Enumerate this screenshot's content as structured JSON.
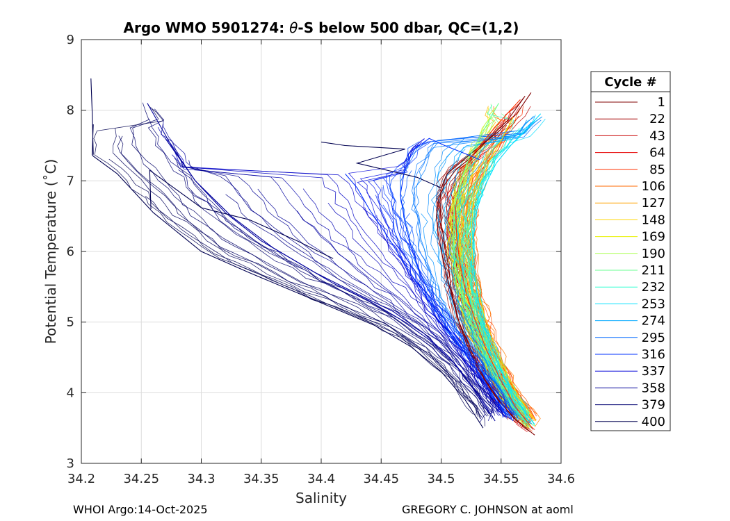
{
  "chart_data": {
    "type": "line",
    "title": "Argo WMO 5901274: θ-S below 500 dbar,  QC=(1,2)",
    "title_prefix": "Argo WMO 5901274: ",
    "title_theta": "θ",
    "title_suffix": "-S below 500 dbar,  QC=(1,2)",
    "xlabel": "Salinity",
    "ylabel": "Potential Temperature (˚C)",
    "xlim": [
      34.2,
      34.6
    ],
    "ylim": [
      3,
      9
    ],
    "xticks": [
      34.2,
      34.25,
      34.3,
      34.35,
      34.4,
      34.45,
      34.5,
      34.55,
      34.6
    ],
    "xtick_labels": [
      "34.2",
      "34.25",
      "34.3",
      "34.35",
      "34.4",
      "34.45",
      "34.5",
      "34.55",
      "34.6"
    ],
    "yticks": [
      3,
      4,
      5,
      6,
      7,
      8,
      9
    ],
    "ytick_labels": [
      "3",
      "4",
      "5",
      "6",
      "7",
      "8",
      "9"
    ],
    "grid": true,
    "legend": {
      "title": "Cycle #",
      "placement": "outside-right",
      "entries": [
        "1",
        "22",
        "43",
        "64",
        "85",
        "106",
        "127",
        "148",
        "169",
        "190",
        "211",
        "232",
        "253",
        "274",
        "295",
        "316",
        "337",
        "358",
        "379",
        "400"
      ],
      "colors": [
        "#800000",
        "#a50000",
        "#c80000",
        "#e60000",
        "#ff3000",
        "#ff6a00",
        "#ffa200",
        "#ffd600",
        "#e8f000",
        "#a8ff4c",
        "#68ff90",
        "#2cffd0",
        "#00e0ff",
        "#00a8ff",
        "#0068ff",
        "#0030ff",
        "#0000d8",
        "#00009c",
        "#000070",
        "#000050"
      ]
    },
    "series": [
      {
        "name": "1",
        "color": "#800000",
        "curves": [
          {
            "s": [
              34.578,
              34.563,
              34.548,
              34.536,
              34.525,
              34.515,
              34.509,
              34.506,
              34.503,
              34.5,
              34.499,
              34.5,
              34.505,
              34.519,
              34.533,
              34.548,
              34.563,
              34.575
            ],
            "t": [
              3.4,
              3.6,
              3.9,
              4.2,
              4.6,
              5.0,
              5.4,
              5.8,
              6.1,
              6.4,
              6.7,
              6.9,
              7.1,
              7.3,
              7.5,
              7.7,
              7.95,
              8.25
            ]
          },
          {
            "s": [
              34.574,
              34.56,
              34.545,
              34.532,
              34.521,
              34.513,
              34.507,
              34.502,
              34.498,
              34.496,
              34.498,
              34.503,
              34.512,
              34.526,
              34.54,
              34.555,
              34.57
            ],
            "t": [
              3.45,
              3.65,
              3.95,
              4.3,
              4.7,
              5.1,
              5.5,
              5.85,
              6.2,
              6.5,
              6.75,
              6.95,
              7.15,
              7.35,
              7.6,
              7.85,
              8.2
            ]
          }
        ]
      },
      {
        "name": "85",
        "color": "#ff3000",
        "curves": [
          {
            "s": [
              34.576,
              34.562,
              34.549,
              34.538,
              34.529,
              34.521,
              34.516,
              34.513,
              34.512,
              34.514,
              34.52,
              34.53,
              34.542,
              34.555,
              34.566
            ],
            "t": [
              3.5,
              3.8,
              4.2,
              4.6,
              5.0,
              5.4,
              5.8,
              6.2,
              6.6,
              6.9,
              7.2,
              7.45,
              7.7,
              7.95,
              8.15
            ]
          }
        ]
      },
      {
        "name": "148",
        "color": "#ffd600",
        "curves": [
          {
            "s": [
              34.579,
              34.566,
              34.554,
              34.544,
              34.536,
              34.53,
              34.526,
              34.525,
              34.527,
              34.533,
              34.541,
              34.551,
              34.56
            ],
            "t": [
              3.6,
              3.9,
              4.3,
              4.7,
              5.1,
              5.5,
              5.9,
              6.3,
              6.7,
              7.0,
              7.3,
              7.6,
              7.9
            ]
          }
        ]
      },
      {
        "name": "211",
        "color": "#68ff90",
        "curves": [
          {
            "s": [
              34.575,
              34.56,
              34.546,
              34.534,
              34.524,
              34.517,
              34.512,
              34.51,
              34.511,
              34.516,
              34.524,
              34.535,
              34.548
            ],
            "t": [
              3.5,
              3.8,
              4.2,
              4.6,
              5.0,
              5.4,
              5.8,
              6.2,
              6.6,
              7.0,
              7.35,
              7.7,
              8.1
            ]
          }
        ]
      },
      {
        "name": "253",
        "color": "#00e0ff",
        "curves": [
          {
            "s": [
              34.578,
              34.565,
              34.553,
              34.543,
              34.535,
              34.53,
              34.527,
              34.527,
              34.53,
              34.537,
              34.546,
              34.558,
              34.572,
              34.583
            ],
            "t": [
              3.55,
              3.85,
              4.2,
              4.6,
              5.0,
              5.4,
              5.8,
              6.2,
              6.6,
              6.95,
              7.25,
              7.5,
              7.75,
              7.95
            ]
          }
        ]
      },
      {
        "name": "316",
        "color": "#0030ff",
        "curves": [
          {
            "s": [
              34.56,
              34.545,
              34.53,
              34.512,
              34.497,
              34.485,
              34.476,
              34.47,
              34.466,
              34.47,
              34.478,
              34.49,
              34.503,
              34.518,
              34.532
            ],
            "t": [
              3.6,
              4.0,
              4.4,
              4.8,
              5.2,
              5.6,
              6.0,
              6.4,
              6.8,
              7.2,
              7.45,
              7.6,
              7.5,
              7.4,
              7.3
            ]
          },
          {
            "s": [
              34.555,
              34.54,
              34.524,
              34.508,
              34.492,
              34.478,
              34.465,
              34.452,
              34.44,
              34.43,
              34.42
            ],
            "t": [
              3.65,
              4.05,
              4.45,
              4.85,
              5.25,
              5.6,
              5.95,
              6.3,
              6.6,
              6.9,
              7.1
            ]
          }
        ]
      },
      {
        "name": "358",
        "color": "#00009c",
        "curves": [
          {
            "s": [
              34.545,
              34.53,
              34.512,
              34.49,
              34.465,
              34.44,
              34.41,
              34.38,
              34.35,
              34.32,
              34.295,
              34.275,
              34.255
            ],
            "t": [
              3.6,
              4.0,
              4.4,
              4.75,
              5.05,
              5.3,
              5.55,
              5.85,
              6.15,
              6.55,
              7.0,
              7.5,
              8.1
            ]
          },
          {
            "s": [
              34.54,
              34.525,
              34.507,
              34.485,
              34.46,
              34.43,
              34.395,
              34.36,
              34.325,
              34.295,
              34.27
            ],
            "t": [
              3.7,
              4.1,
              4.5,
              4.85,
              5.15,
              5.4,
              5.7,
              6.05,
              6.5,
              7.0,
              7.6
            ]
          }
        ]
      },
      {
        "name": "400",
        "color": "#000050",
        "curves": [
          {
            "s": [
              34.535,
              34.52,
              34.5,
              34.475,
              34.445,
              34.41,
              34.375,
              34.34,
              34.3,
              34.26,
              34.23,
              34.21,
              34.209,
              34.21
            ],
            "t": [
              3.5,
              3.9,
              4.3,
              4.65,
              4.95,
              5.2,
              5.45,
              5.7,
              6.0,
              6.55,
              7.1,
              7.35,
              7.37,
              7.8
            ]
          },
          {
            "s": [
              34.21,
              34.209,
              34.208
            ],
            "t": [
              7.37,
              8.0,
              8.45
            ]
          },
          {
            "s": [
              34.258,
              34.257,
              34.3,
              34.34,
              34.38,
              34.41
            ],
            "t": [
              6.6,
              7.15,
              6.62,
              6.45,
              6.15,
              5.9
            ]
          },
          {
            "s": [
              34.4,
              34.42,
              34.47,
              34.43,
              34.48,
              34.5
            ],
            "t": [
              7.55,
              7.5,
              7.45,
              7.25,
              7.05,
              6.9
            ]
          }
        ]
      }
    ]
  },
  "footer": {
    "left": "WHOI Argo:14-Oct-2025",
    "right": "GREGORY C. JOHNSON at aoml"
  }
}
